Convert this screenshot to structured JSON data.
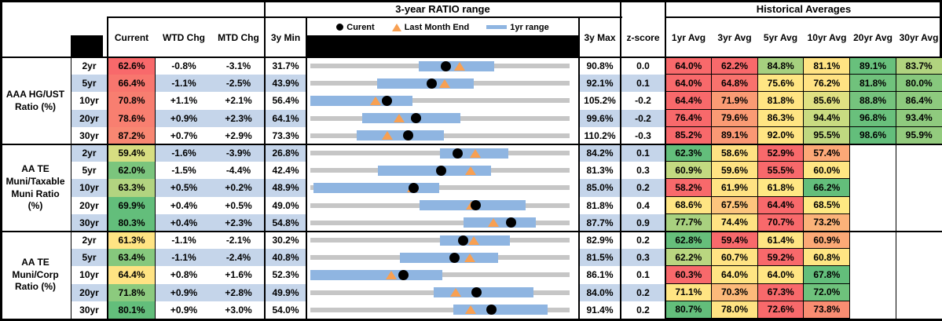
{
  "colors": {
    "stripe_blue": "#C5D5EA",
    "track_gray": "#C6C6C6",
    "range_bar_blue": "#8FB5E1",
    "marker_orange": "#F8A052",
    "marker_black": "#000000"
  },
  "header": {
    "range_title": "3-year RATIO range",
    "hist_title": "Historical Averages",
    "cols": {
      "current": "Current",
      "wtd": "WTD Chg",
      "mtd": "MTD Chg",
      "min": "3y Min",
      "max": "3y Max",
      "z": "z-score"
    },
    "avg_cols": [
      "1yr Avg",
      "3yr Avg",
      "5yr Avg",
      "10yr Avg",
      "20yr Avg",
      "30yr Avg"
    ],
    "legend": {
      "current": "Curent",
      "last_month": "Last Month End",
      "range": "1yr range"
    }
  },
  "chart_data": {
    "type": "table",
    "sections": [
      {
        "label_lines": [
          "AAA HG/UST",
          "Ratio (%)"
        ],
        "rows": [
          {
            "tenor": "2yr",
            "current": 62.6,
            "current_color": "#F8696B",
            "wtd": -0.8,
            "mtd": -3.1,
            "min": 31.7,
            "max": 90.8,
            "z": 0.0,
            "bar": [
              56.5,
              73.6
            ],
            "last_month": 65.7,
            "avgs": [
              {
                "v": 64.0,
                "c": "#F8696B"
              },
              {
                "v": 62.2,
                "c": "#F8696B"
              },
              {
                "v": 84.8,
                "c": "#A6D07F"
              },
              {
                "v": 81.1,
                "c": "#FFE383"
              },
              {
                "v": 89.1,
                "c": "#68C07C"
              },
              {
                "v": 83.7,
                "c": "#B1D37F"
              }
            ]
          },
          {
            "tenor": "5yr",
            "current": 66.4,
            "current_color": "#F8766E",
            "wtd": -1.1,
            "mtd": -2.5,
            "min": 43.9,
            "max": 92.1,
            "z": 0.1,
            "bar": [
              56.3,
              74.3
            ],
            "last_month": 68.9,
            "avgs": [
              {
                "v": 64.0,
                "c": "#F8696B"
              },
              {
                "v": 64.8,
                "c": "#F9726D"
              },
              {
                "v": 75.6,
                "c": "#FFE683"
              },
              {
                "v": 76.2,
                "c": "#FFE283"
              },
              {
                "v": 81.8,
                "c": "#70C27C"
              },
              {
                "v": 80.0,
                "c": "#87C87D"
              }
            ]
          },
          {
            "tenor": "10yr",
            "current": 70.8,
            "current_color": "#F87E70",
            "wtd": 1.1,
            "mtd": 2.1,
            "min": 56.4,
            "max": 105.2,
            "z": -0.2,
            "bar": [
              56.4,
              75.6
            ],
            "last_month": 68.7,
            "avgs": [
              {
                "v": 64.4,
                "c": "#F8696B"
              },
              {
                "v": 71.9,
                "c": "#FA9B74"
              },
              {
                "v": 81.8,
                "c": "#FFE583"
              },
              {
                "v": 85.6,
                "c": "#E0E182"
              },
              {
                "v": 88.8,
                "c": "#75C37D"
              },
              {
                "v": 86.4,
                "c": "#8ECA7E"
              }
            ]
          },
          {
            "tenor": "20yr",
            "current": 78.6,
            "current_color": "#F87F70",
            "wtd": 0.9,
            "mtd": 2.3,
            "min": 64.1,
            "max": 99.6,
            "z": -0.2,
            "bar": [
              71.2,
              84.7
            ],
            "last_month": 76.3,
            "avgs": [
              {
                "v": 76.4,
                "c": "#F8696B"
              },
              {
                "v": 79.6,
                "c": "#FA9B74"
              },
              {
                "v": 86.3,
                "c": "#FFE583"
              },
              {
                "v": 94.4,
                "c": "#C9DB81"
              },
              {
                "v": 96.8,
                "c": "#69C07C"
              },
              {
                "v": 93.4,
                "c": "#8FCA7E"
              }
            ]
          },
          {
            "tenor": "30yr",
            "current": 87.2,
            "current_color": "#F88772",
            "wtd": 0.7,
            "mtd": 2.9,
            "min": 73.3,
            "max": 110.2,
            "z": -0.3,
            "bar": [
              79.9,
              92.3
            ],
            "last_month": 84.3,
            "avgs": [
              {
                "v": 85.2,
                "c": "#F8696B"
              },
              {
                "v": 89.1,
                "c": "#FA9874"
              },
              {
                "v": 92.0,
                "c": "#FFE583"
              },
              {
                "v": 95.5,
                "c": "#C0D880"
              },
              {
                "v": 98.6,
                "c": "#63BE7B"
              },
              {
                "v": 95.9,
                "c": "#93CB7E"
              }
            ]
          }
        ]
      },
      {
        "label_lines": [
          "AA TE",
          "Muni/Taxable",
          "Muni Ratio",
          "(%)"
        ],
        "rows": [
          {
            "tenor": "2yr",
            "current": 59.4,
            "current_color": "#D7DE81",
            "wtd": -1.6,
            "mtd": -3.9,
            "min": 26.8,
            "max": 84.2,
            "z": 0.1,
            "bar": [
              55.5,
              70.6
            ],
            "last_month": 63.3,
            "avgs": [
              {
                "v": 62.3,
                "c": "#63BE7B"
              },
              {
                "v": 58.6,
                "c": "#FFE283"
              },
              {
                "v": 52.9,
                "c": "#F8696B"
              },
              {
                "v": 57.4,
                "c": "#FCA877"
              },
              null,
              null
            ]
          },
          {
            "tenor": "5yr",
            "current": 62.0,
            "current_color": "#7BC57D",
            "wtd": -1.5,
            "mtd": -4.4,
            "min": 42.4,
            "max": 81.3,
            "z": 0.3,
            "bar": [
              52.5,
              69.5
            ],
            "last_month": 66.4,
            "avgs": [
              {
                "v": 60.9,
                "c": "#C3DA81"
              },
              {
                "v": 59.6,
                "c": "#FFE383"
              },
              {
                "v": 55.5,
                "c": "#F8696B"
              },
              {
                "v": 60.0,
                "c": "#FFE683"
              },
              null,
              null
            ]
          },
          {
            "tenor": "10yr",
            "current": 63.3,
            "current_color": "#B2D480",
            "wtd": 0.5,
            "mtd": 0.2,
            "min": 48.9,
            "max": 85.0,
            "z": 0.2,
            "bar": [
              49.3,
              66.8
            ],
            "last_month": 63.1,
            "avgs": [
              {
                "v": 58.2,
                "c": "#F8696B"
              },
              {
                "v": 61.9,
                "c": "#FFE383"
              },
              {
                "v": 61.8,
                "c": "#FFE884"
              },
              {
                "v": 66.2,
                "c": "#63BE7B"
              },
              null,
              null
            ]
          },
          {
            "tenor": "20yr",
            "current": 69.9,
            "current_color": "#63BE7B",
            "wtd": 0.4,
            "mtd": 0.5,
            "min": 49.0,
            "max": 81.8,
            "z": 0.4,
            "bar": [
              62.8,
              76.2
            ],
            "last_month": 69.4,
            "avgs": [
              {
                "v": 68.6,
                "c": "#FFE583"
              },
              {
                "v": 67.5,
                "c": "#FDC57D"
              },
              {
                "v": 64.4,
                "c": "#F8696B"
              },
              {
                "v": 68.5,
                "c": "#FEE982"
              },
              null,
              null
            ]
          },
          {
            "tenor": "30yr",
            "current": 80.3,
            "current_color": "#63BE7B",
            "wtd": 0.4,
            "mtd": 2.3,
            "min": 54.8,
            "max": 87.7,
            "z": 0.9,
            "bar": [
              74.2,
              83.4
            ],
            "last_month": 78.0,
            "avgs": [
              {
                "v": 77.7,
                "c": "#A8D17F"
              },
              {
                "v": 74.4,
                "c": "#FFE383"
              },
              {
                "v": 70.7,
                "c": "#F8696B"
              },
              {
                "v": 73.2,
                "c": "#FBB279"
              },
              null,
              null
            ]
          }
        ]
      },
      {
        "label_lines": [
          "AA TE",
          "Muni/Corp",
          "Ratio (%)"
        ],
        "rows": [
          {
            "tenor": "2yr",
            "current": 61.3,
            "current_color": "#FFE483",
            "wtd": -1.1,
            "mtd": -2.1,
            "min": 30.2,
            "max": 82.9,
            "z": 0.2,
            "bar": [
              56.6,
              70.7
            ],
            "last_month": 63.4,
            "avgs": [
              {
                "v": 62.8,
                "c": "#66BF7B"
              },
              {
                "v": 59.4,
                "c": "#F8696B"
              },
              {
                "v": 61.4,
                "c": "#FFE583"
              },
              {
                "v": 60.9,
                "c": "#FCA976"
              },
              null,
              null
            ]
          },
          {
            "tenor": "5yr",
            "current": 63.4,
            "current_color": "#86C87D",
            "wtd": -1.1,
            "mtd": -2.4,
            "min": 40.8,
            "max": 81.5,
            "z": 0.3,
            "bar": [
              54.8,
              70.3
            ],
            "last_month": 65.8,
            "avgs": [
              {
                "v": 62.2,
                "c": "#B9D680"
              },
              {
                "v": 60.7,
                "c": "#FFE383"
              },
              {
                "v": 59.2,
                "c": "#F8696B"
              },
              {
                "v": 60.8,
                "c": "#FFE583"
              },
              null,
              null
            ]
          },
          {
            "tenor": "10yr",
            "current": 64.4,
            "current_color": "#FFE383",
            "wtd": 0.8,
            "mtd": 1.6,
            "min": 52.3,
            "max": 86.1,
            "z": 0.1,
            "bar": [
              52.3,
              69.5
            ],
            "last_month": 62.8,
            "avgs": [
              {
                "v": 60.3,
                "c": "#F8696B"
              },
              {
                "v": 64.0,
                "c": "#FFE583"
              },
              {
                "v": 64.0,
                "c": "#FFE583"
              },
              {
                "v": 67.8,
                "c": "#63BE7B"
              },
              null,
              null
            ]
          },
          {
            "tenor": "20yr",
            "current": 71.8,
            "current_color": "#8CCA7E",
            "wtd": 0.9,
            "mtd": 2.8,
            "min": 49.9,
            "max": 84.0,
            "z": 0.2,
            "bar": [
              66.1,
              79.2
            ],
            "last_month": 69.0,
            "avgs": [
              {
                "v": 71.1,
                "c": "#FFE583"
              },
              {
                "v": 70.3,
                "c": "#FCB97A"
              },
              {
                "v": 67.3,
                "c": "#F8696B"
              },
              {
                "v": 72.0,
                "c": "#6EC27C"
              },
              null,
              null
            ]
          },
          {
            "tenor": "30yr",
            "current": 80.1,
            "current_color": "#63BE7B",
            "wtd": 0.9,
            "mtd": 3.0,
            "min": 54.0,
            "max": 91.4,
            "z": 0.2,
            "bar": [
              74.6,
              88.2
            ],
            "last_month": 77.1,
            "avgs": [
              {
                "v": 80.7,
                "c": "#63BE7B"
              },
              {
                "v": 78.0,
                "c": "#FFE383"
              },
              {
                "v": 72.6,
                "c": "#F8696B"
              },
              {
                "v": 73.8,
                "c": "#F98D72"
              },
              null,
              null
            ]
          }
        ]
      }
    ]
  }
}
